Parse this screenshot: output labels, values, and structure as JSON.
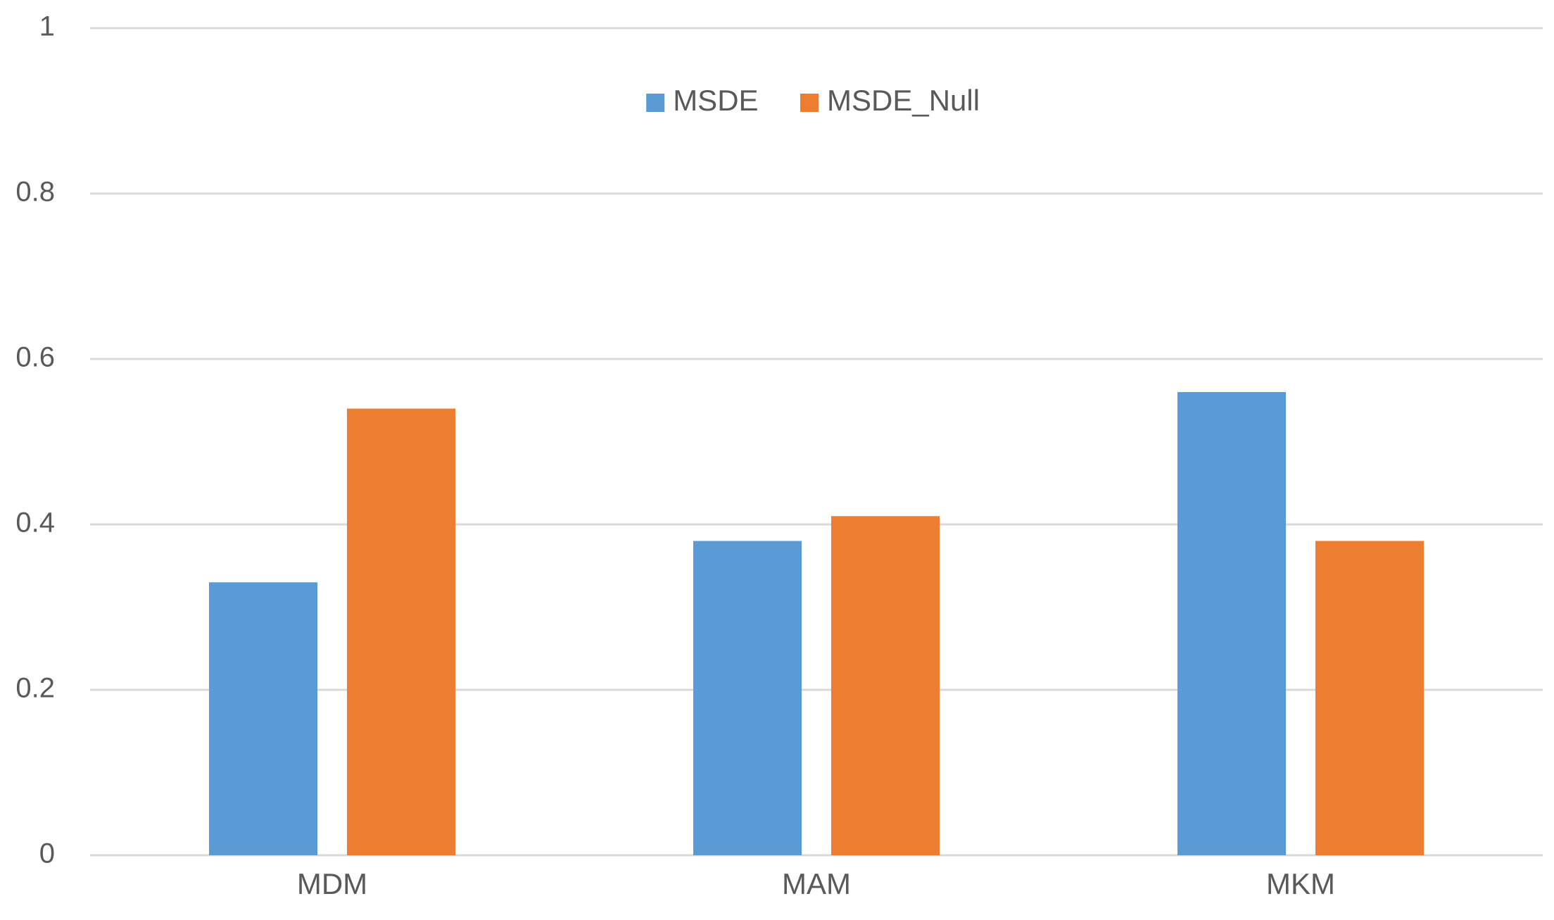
{
  "chart_data": {
    "type": "bar",
    "title": "",
    "xlabel": "",
    "ylabel": "",
    "categories": [
      "MDM",
      "MAM",
      "MKM"
    ],
    "series": [
      {
        "name": "MSDE",
        "values": [
          0.33,
          0.38,
          0.56
        ],
        "color": "#5b9bd5"
      },
      {
        "name": "MSDE_Null",
        "values": [
          0.54,
          0.41,
          0.38
        ],
        "color": "#ed7d31"
      }
    ],
    "ylim": [
      0,
      1
    ],
    "yticks": [
      "0",
      "0.2",
      "0.4",
      "0.6",
      "0.8",
      "1"
    ],
    "ytick_values": [
      0,
      0.2,
      0.4,
      0.6,
      0.8,
      1
    ],
    "grid": true,
    "gridline_color": "#d9d9d9",
    "legend": {
      "position": "top-center"
    }
  }
}
